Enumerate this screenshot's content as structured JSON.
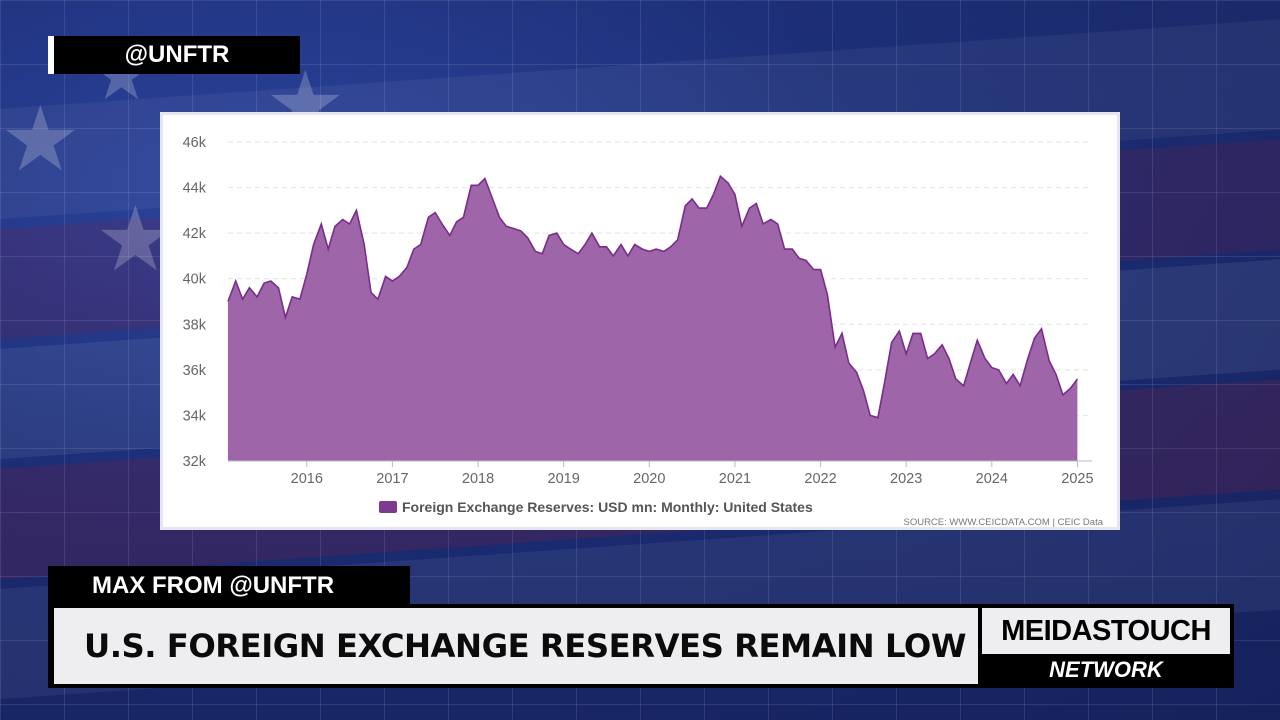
{
  "overlay": {
    "handle": "@UNFTR",
    "speaker": "MAX FROM @UNFTR",
    "headline": "U.S. FOREIGN EXCHANGE RESERVES REMAIN LOW",
    "brand_top": "MEIDASTOUCH",
    "brand_bottom": "NETWORK"
  },
  "colors": {
    "area_fill": "#9e65a8",
    "area_line": "#7a2c8a",
    "legend_swatch": "#7d3a8e"
  },
  "chart_data": {
    "type": "area",
    "title": "",
    "xlabel": "",
    "ylabel": "",
    "legend": "Foreign Exchange Reserves: USD mn: Monthly: United States",
    "source": "SOURCE: WWW.CEICDATA.COM | CEIC Data",
    "ylim": [
      32000,
      46000
    ],
    "yticks": [
      32000,
      34000,
      36000,
      38000,
      40000,
      42000,
      44000,
      46000
    ],
    "ytick_labels": [
      "32k",
      "34k",
      "36k",
      "38k",
      "40k",
      "42k",
      "44k",
      "46k"
    ],
    "xlim": [
      2015.08,
      2025.17
    ],
    "xticks": [
      2016,
      2017,
      2018,
      2019,
      2020,
      2021,
      2022,
      2023,
      2024,
      2025
    ],
    "xtick_labels": [
      "2016",
      "2017",
      "2018",
      "2019",
      "2020",
      "2021",
      "2022",
      "2023",
      "2024",
      "2025"
    ],
    "grid": true,
    "series": [
      {
        "name": "Foreign Exchange Reserves: USD mn: Monthly: United States",
        "points": [
          [
            2015.08,
            39000
          ],
          [
            2015.17,
            39900
          ],
          [
            2015.25,
            39100
          ],
          [
            2015.33,
            39600
          ],
          [
            2015.42,
            39200
          ],
          [
            2015.5,
            39800
          ],
          [
            2015.58,
            39900
          ],
          [
            2015.67,
            39600
          ],
          [
            2015.75,
            38300
          ],
          [
            2015.83,
            39200
          ],
          [
            2015.92,
            39100
          ],
          [
            2016.0,
            40200
          ],
          [
            2016.08,
            41500
          ],
          [
            2016.17,
            42400
          ],
          [
            2016.25,
            41300
          ],
          [
            2016.33,
            42300
          ],
          [
            2016.42,
            42600
          ],
          [
            2016.5,
            42400
          ],
          [
            2016.58,
            43000
          ],
          [
            2016.67,
            41500
          ],
          [
            2016.75,
            39400
          ],
          [
            2016.83,
            39100
          ],
          [
            2016.92,
            40100
          ],
          [
            2017.0,
            39900
          ],
          [
            2017.08,
            40100
          ],
          [
            2017.17,
            40500
          ],
          [
            2017.25,
            41300
          ],
          [
            2017.33,
            41500
          ],
          [
            2017.42,
            42700
          ],
          [
            2017.5,
            42900
          ],
          [
            2017.58,
            42400
          ],
          [
            2017.67,
            41900
          ],
          [
            2017.75,
            42500
          ],
          [
            2017.83,
            42700
          ],
          [
            2017.92,
            44100
          ],
          [
            2018.0,
            44100
          ],
          [
            2018.08,
            44400
          ],
          [
            2018.17,
            43500
          ],
          [
            2018.25,
            42700
          ],
          [
            2018.33,
            42300
          ],
          [
            2018.42,
            42200
          ],
          [
            2018.5,
            42100
          ],
          [
            2018.58,
            41800
          ],
          [
            2018.67,
            41200
          ],
          [
            2018.75,
            41100
          ],
          [
            2018.83,
            41900
          ],
          [
            2018.92,
            42000
          ],
          [
            2019.0,
            41500
          ],
          [
            2019.08,
            41300
          ],
          [
            2019.17,
            41100
          ],
          [
            2019.25,
            41500
          ],
          [
            2019.33,
            42000
          ],
          [
            2019.42,
            41400
          ],
          [
            2019.5,
            41400
          ],
          [
            2019.58,
            41000
          ],
          [
            2019.67,
            41500
          ],
          [
            2019.75,
            41000
          ],
          [
            2019.83,
            41500
          ],
          [
            2019.92,
            41300
          ],
          [
            2020.0,
            41200
          ],
          [
            2020.08,
            41300
          ],
          [
            2020.17,
            41200
          ],
          [
            2020.25,
            41400
          ],
          [
            2020.33,
            41700
          ],
          [
            2020.42,
            43200
          ],
          [
            2020.5,
            43500
          ],
          [
            2020.58,
            43100
          ],
          [
            2020.67,
            43100
          ],
          [
            2020.75,
            43700
          ],
          [
            2020.83,
            44500
          ],
          [
            2020.92,
            44200
          ],
          [
            2021.0,
            43700
          ],
          [
            2021.08,
            42300
          ],
          [
            2021.17,
            43100
          ],
          [
            2021.25,
            43300
          ],
          [
            2021.33,
            42400
          ],
          [
            2021.42,
            42600
          ],
          [
            2021.5,
            42400
          ],
          [
            2021.58,
            41300
          ],
          [
            2021.67,
            41300
          ],
          [
            2021.75,
            40900
          ],
          [
            2021.83,
            40800
          ],
          [
            2021.92,
            40400
          ],
          [
            2022.0,
            40400
          ],
          [
            2022.08,
            39300
          ],
          [
            2022.17,
            37000
          ],
          [
            2022.25,
            37600
          ],
          [
            2022.33,
            36300
          ],
          [
            2022.42,
            35900
          ],
          [
            2022.5,
            35100
          ],
          [
            2022.58,
            34000
          ],
          [
            2022.67,
            33900
          ],
          [
            2022.75,
            35500
          ],
          [
            2022.83,
            37200
          ],
          [
            2022.92,
            37700
          ],
          [
            2023.0,
            36700
          ],
          [
            2023.08,
            37600
          ],
          [
            2023.17,
            37600
          ],
          [
            2023.25,
            36500
          ],
          [
            2023.33,
            36700
          ],
          [
            2023.42,
            37100
          ],
          [
            2023.5,
            36500
          ],
          [
            2023.58,
            35600
          ],
          [
            2023.67,
            35300
          ],
          [
            2023.75,
            36300
          ],
          [
            2023.83,
            37300
          ],
          [
            2023.92,
            36500
          ],
          [
            2024.0,
            36100
          ],
          [
            2024.08,
            36000
          ],
          [
            2024.17,
            35400
          ],
          [
            2024.25,
            35800
          ],
          [
            2024.33,
            35300
          ],
          [
            2024.42,
            36500
          ],
          [
            2024.5,
            37400
          ],
          [
            2024.58,
            37800
          ],
          [
            2024.67,
            36400
          ],
          [
            2024.75,
            35800
          ],
          [
            2024.83,
            34900
          ],
          [
            2024.92,
            35200
          ],
          [
            2025.0,
            35600
          ]
        ]
      }
    ]
  }
}
